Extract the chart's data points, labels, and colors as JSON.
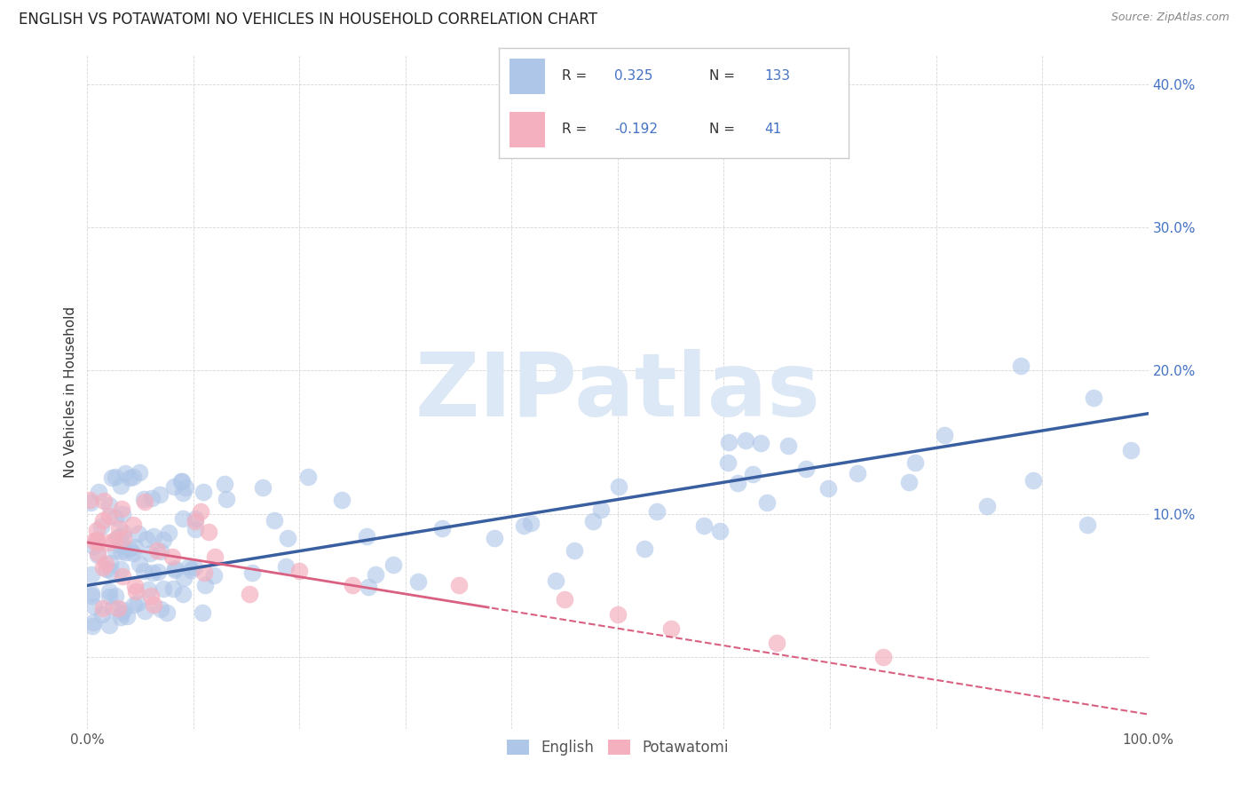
{
  "title": "ENGLISH VS POTAWATOMI NO VEHICLES IN HOUSEHOLD CORRELATION CHART",
  "source": "Source: ZipAtlas.com",
  "ylabel": "No Vehicles in Household",
  "english_R": 0.325,
  "english_N": 133,
  "potawatomi_R": -0.192,
  "potawatomi_N": 41,
  "legend_english": "English",
  "legend_potawatomi": "Potawatomi",
  "xlim": [
    0.0,
    1.0
  ],
  "ylim": [
    -0.05,
    0.42
  ],
  "background_color": "#ffffff",
  "grid_color": "#cccccc",
  "english_color": "#aec6e8",
  "english_line_color": "#3a5fa0",
  "potawatomi_color": "#f4b0bf",
  "potawatomi_line_color": "#d96080",
  "watermark": "ZIPatlas",
  "watermark_color": "#dce8f5",
  "title_color": "#222222",
  "title_fontsize": 12,
  "axis_label_color": "#333333",
  "tick_color": "#555555",
  "right_tick_color": "#4472c4"
}
